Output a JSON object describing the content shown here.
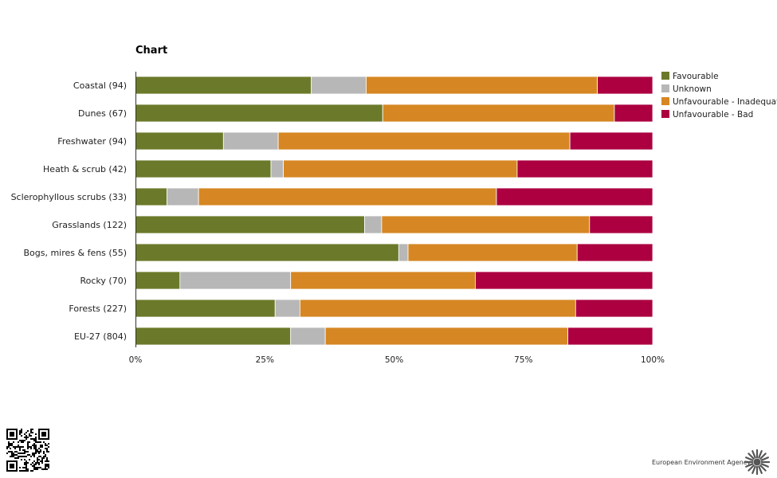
{
  "chart_data": {
    "type": "bar",
    "orientation": "horizontal",
    "stacked": true,
    "percent": true,
    "title": "Chart",
    "xlabel": "",
    "ylabel": "",
    "xlim": [
      0,
      100
    ],
    "x_ticks": [
      "0%",
      "25%",
      "50%",
      "75%",
      "100%"
    ],
    "legend_position": "top-right",
    "categories": [
      "Coastal (94)",
      "Dunes (67)",
      "Freshwater (94)",
      "Heath & scrub (42)",
      "Sclerophyllous scrubs (33)",
      "Grasslands (122)",
      "Bogs, mires & fens (55)",
      "Rocky (70)",
      "Forests (227)",
      "EU-27 (804)"
    ],
    "series": [
      {
        "name": "Favourable",
        "color": "#6b7a2a",
        "values": [
          34,
          47.8,
          17,
          26.2,
          6.1,
          44.3,
          50.9,
          8.6,
          27,
          30
        ]
      },
      {
        "name": "Unknown",
        "color": "#b7b7b7",
        "values": [
          10.6,
          0,
          10.6,
          2.4,
          6.1,
          3.3,
          1.8,
          21.4,
          4.8,
          6.7
        ]
      },
      {
        "name": "Unfavourable - Inadequate",
        "color": "#d68723",
        "values": [
          44.7,
          44.8,
          56.4,
          45.2,
          57.6,
          40.2,
          32.7,
          35.7,
          53.3,
          46.9
        ]
      },
      {
        "name": "Unfavourable - Bad",
        "color": "#ac0040",
        "values": [
          10.7,
          7.4,
          16,
          26.2,
          30.2,
          12.2,
          14.6,
          34.3,
          14.9,
          16.4
        ]
      }
    ]
  },
  "branding": {
    "agency": "European Environment Agency"
  }
}
